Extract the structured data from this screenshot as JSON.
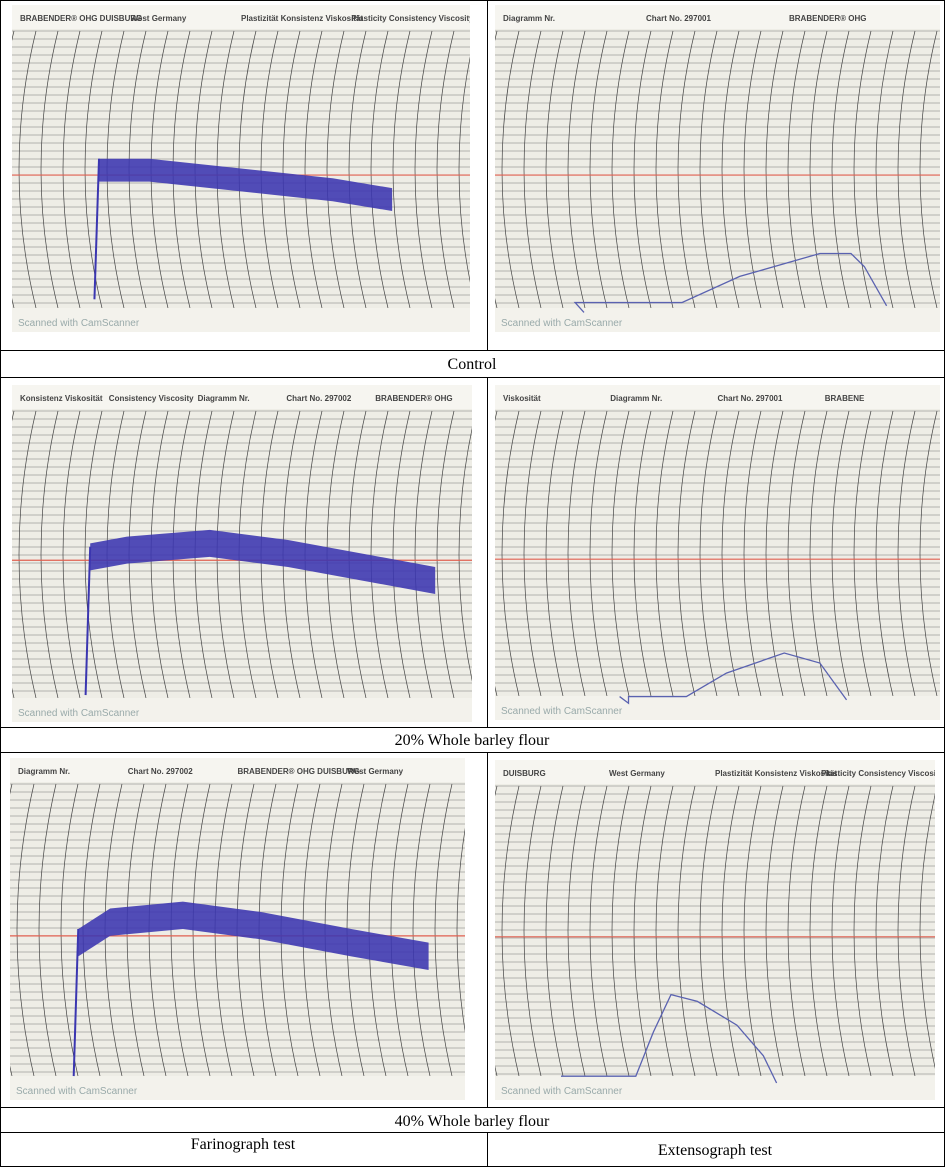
{
  "rows": [
    {
      "caption": "Control",
      "panels": [
        {
          "header": [
            "BRABENDER® OHG DUISBURG",
            "West Germany",
            "Plastizität Konsistenz Viskosität",
            "Plasticity Consistency Viscosity"
          ],
          "watermark": "Scanned with CamScanner"
        },
        {
          "header": [
            "Diagramm Nr.",
            "Chart No. 297001",
            "BRABENDER® OHG"
          ],
          "watermark": "Scanned with CamScanner"
        }
      ]
    },
    {
      "caption": "20% Whole barley flour",
      "panels": [
        {
          "header": [
            "Konsistenz Viskosität",
            "Consistency Viscosity",
            "Diagramm Nr.",
            "Chart No. 297002",
            "BRABENDER® OHG"
          ],
          "watermark": "Scanned with CamScanner"
        },
        {
          "header": [
            "Viskosität",
            "Diagramm Nr.",
            "Chart No. 297001",
            "BRABENE"
          ],
          "watermark": "Scanned with CamScanner"
        }
      ]
    },
    {
      "caption": "40% Whole barley flour",
      "panels": [
        {
          "header": [
            "Diagramm Nr.",
            "Chart No. 297002",
            "BRABENDER® OHG DUISBURG",
            "West Germany"
          ],
          "watermark": "Scanned with CamScanner"
        },
        {
          "header": [
            "DUISBURG",
            "West Germany",
            "Plastizität Konsistenz Viskosität",
            "Plasticity Consistency Viscosity"
          ],
          "watermark": "Scanned with CamScanner"
        }
      ]
    }
  ],
  "footer": [
    "Farinograph test",
    "Extensograph test"
  ]
}
